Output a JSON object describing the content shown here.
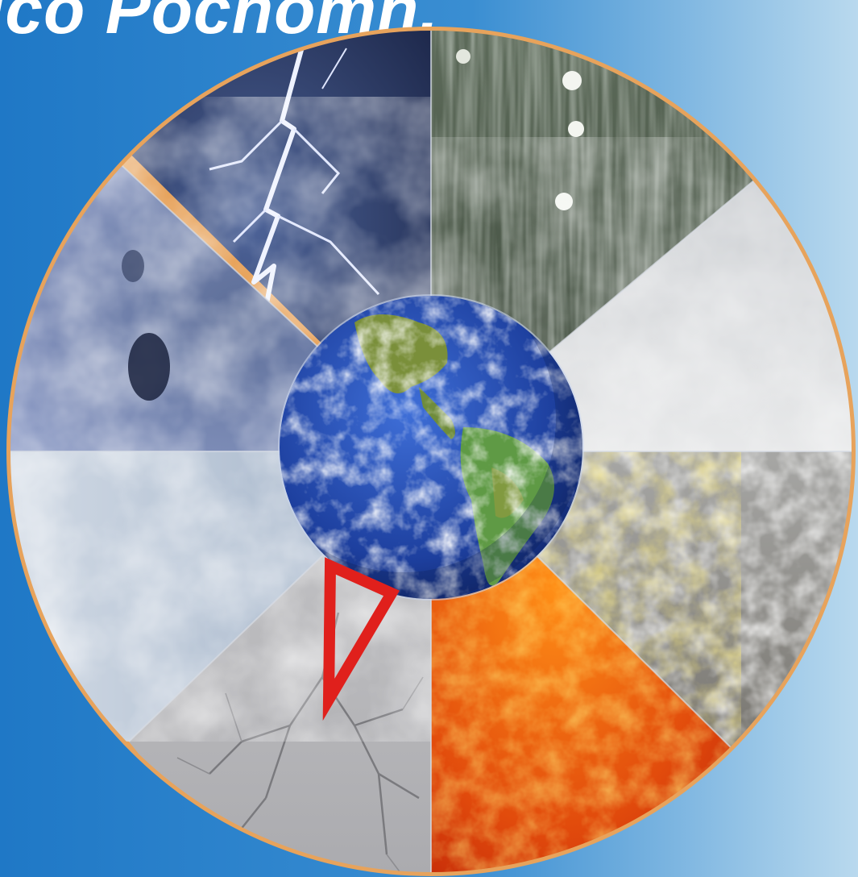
{
  "headline": {
    "text": "ico Pochomh."
  },
  "colors": {
    "background_left": "#1f78c6",
    "background_right": "#b9d9ee",
    "rim": "#e7a35c",
    "warning_triangle": "#e0201c"
  },
  "emblem": {
    "segments": [
      "lightning-storm",
      "rain",
      "fog-mist",
      "hail",
      "sun-heat",
      "drought-cracked-ground",
      "cloud-cover",
      "cyclone-satellite"
    ],
    "center": "earth-globe",
    "overlay": "warning-triangle-icon"
  }
}
